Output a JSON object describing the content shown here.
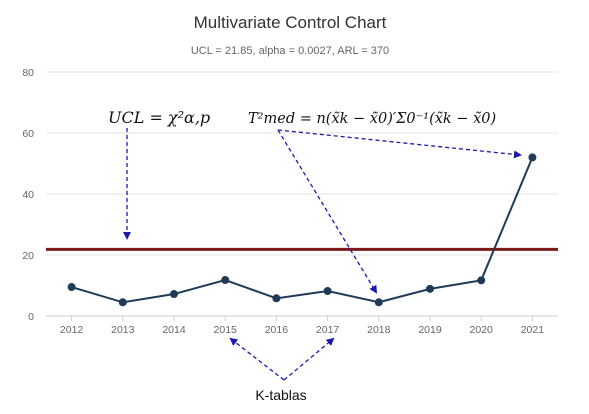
{
  "chart_data": {
    "type": "line",
    "title": "Multivariate Control Chart",
    "subtitle": "UCL = 21.85, alpha = 0.0027, ARL = 370",
    "categories": [
      "2012",
      "2013",
      "2014",
      "2015",
      "2016",
      "2017",
      "2018",
      "2019",
      "2020",
      "2021"
    ],
    "series": [
      {
        "values": [
          9.5,
          4.5,
          7.2,
          11.8,
          5.8,
          8.2,
          4.5,
          8.9,
          11.7,
          52
        ]
      }
    ],
    "ucl": 21.85,
    "ylim": [
      0,
      80
    ],
    "yticks": [
      0,
      20,
      40,
      60,
      80
    ],
    "grid": true,
    "colors": {
      "line": "#1f3b57",
      "marker": "#1f3b57",
      "ucl": "#7b1a1a",
      "grid": "#e6e6e6",
      "annotation_arrow": "#1a1aa8"
    }
  },
  "annotations": {
    "ucl_formula": "UCL = χ²α,p",
    "t2_formula": "T²med = n(x̃k − x̃0)′Σ0⁻¹(x̃k − x̃0)",
    "ktablas_label": "K-tablas"
  }
}
